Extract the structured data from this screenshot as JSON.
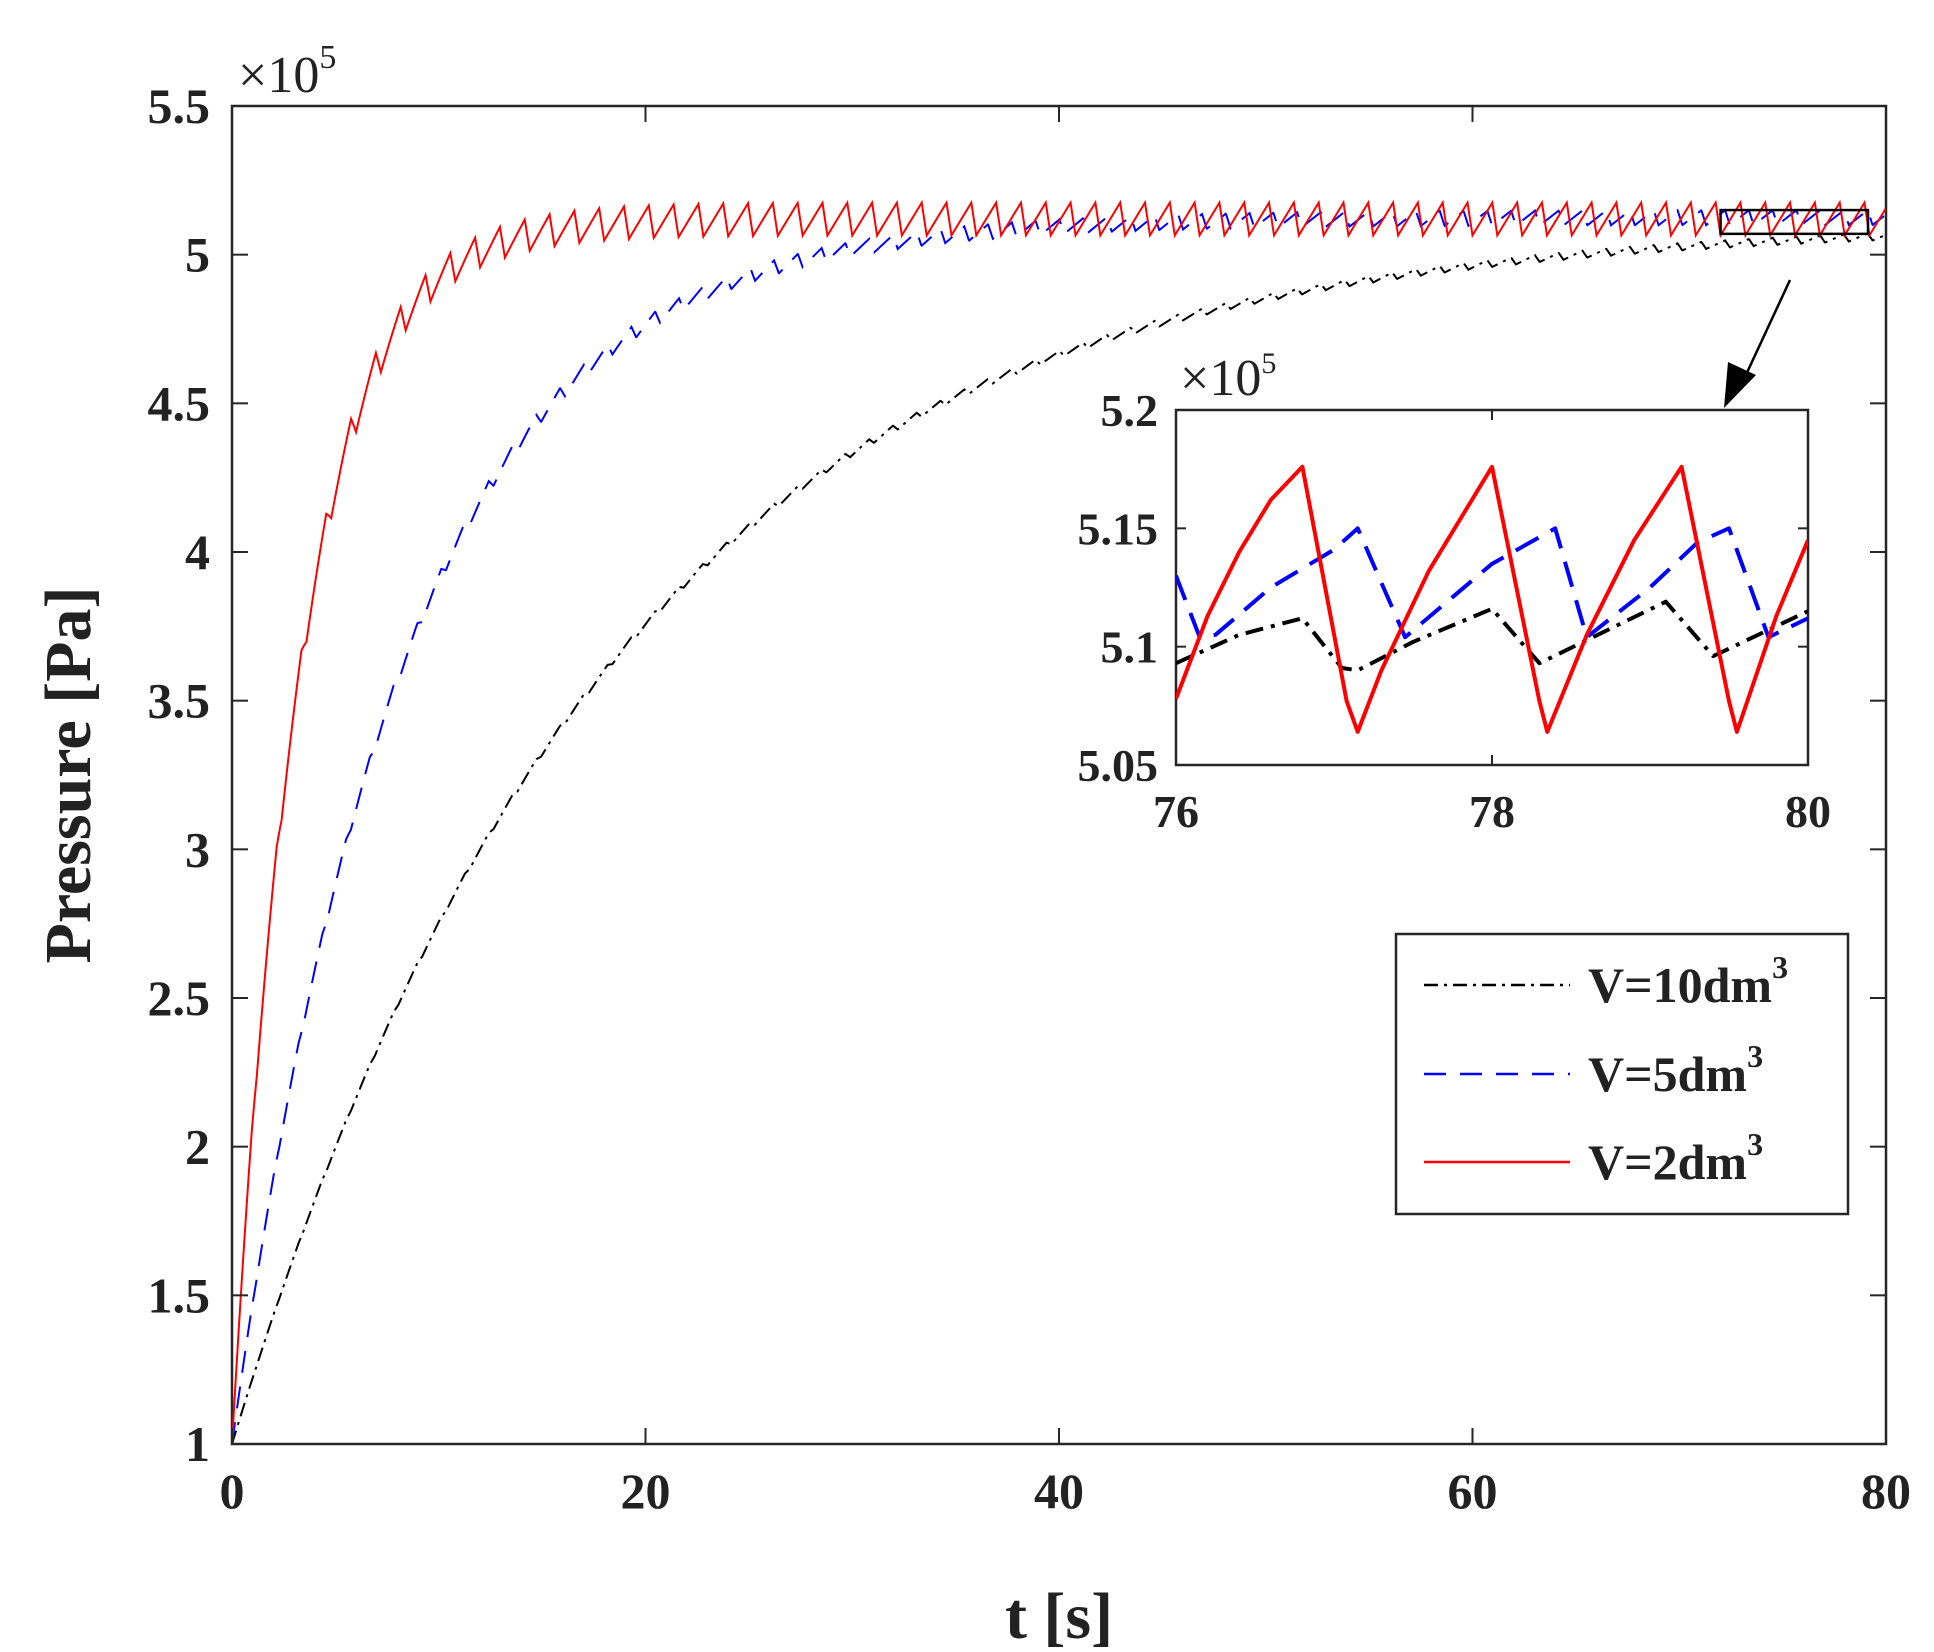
{
  "chart_data": {
    "main": {
      "type": "line",
      "xlabel": "t [s]",
      "ylabel": "Pressure [Pa]",
      "xlim": [
        0,
        80
      ],
      "ylim": [
        1,
        5.5
      ],
      "y_multiplier": {
        "times": "×",
        "base": "10",
        "exp": "5"
      },
      "xticks": [
        0,
        20,
        40,
        60,
        80
      ],
      "xtick_labels": [
        "0",
        "20",
        "40",
        "60",
        "80"
      ],
      "yticks": [
        1,
        1.5,
        2,
        2.5,
        3,
        3.5,
        4,
        4.5,
        5,
        5.5
      ],
      "ytick_labels": [
        "1",
        "1.5",
        "2",
        "2.5",
        "3",
        "3.5",
        "4",
        "4.5",
        "5",
        "5.5"
      ],
      "grid": false,
      "legend_position": "bottom-right",
      "series": [
        {
          "name": "V=10dm",
          "sup": "3",
          "color": "#000000",
          "style": "dashdot",
          "p0": 1.0,
          "pss": 5.11,
          "tau": 18.0,
          "period": 1.15,
          "ripple": 0.025
        },
        {
          "name": "V=5dm",
          "sup": "3",
          "color": "#0000ff",
          "style": "dash",
          "p0": 1.0,
          "pss": 5.125,
          "tau": 8.2,
          "period": 1.15,
          "ripple": 0.05
        },
        {
          "name": "V=2dm",
          "sup": "3",
          "color": "#ff0000",
          "style": "solid",
          "p0": 1.0,
          "pss": 5.12,
          "tau": 3.3,
          "period": 1.2,
          "ripple": 0.11
        }
      ]
    },
    "inset": {
      "type": "line",
      "xlim": [
        76,
        80
      ],
      "ylim": [
        5.05,
        5.2
      ],
      "y_multiplier": {
        "times": "×",
        "base": "10",
        "exp": "5"
      },
      "xticks": [
        76,
        78,
        80
      ],
      "xtick_labels": [
        "76",
        "78",
        "80"
      ],
      "yticks": [
        5.05,
        5.1,
        5.15,
        5.2
      ],
      "ytick_labels": [
        "5.05",
        "5.1",
        "5.15",
        "5.2"
      ],
      "zoom_box": {
        "x": [
          72,
          80
        ],
        "y": [
          5.07,
          5.15
        ]
      },
      "series": [
        {
          "name": "V=10dm3",
          "color": "#000000",
          "style": "dashdot",
          "points": [
            [
              76.0,
              5.093
            ],
            [
              76.4,
              5.105
            ],
            [
              76.8,
              5.112
            ],
            [
              77.05,
              5.091
            ],
            [
              77.15,
              5.09
            ],
            [
              77.5,
              5.102
            ],
            [
              78.0,
              5.116
            ],
            [
              78.3,
              5.093
            ],
            [
              78.7,
              5.106
            ],
            [
              79.1,
              5.119
            ],
            [
              79.4,
              5.096
            ],
            [
              80.0,
              5.115
            ]
          ]
        },
        {
          "name": "V=5dm3",
          "color": "#0000ff",
          "style": "dash",
          "points": [
            [
              76.0,
              5.13
            ],
            [
              76.15,
              5.104
            ],
            [
              76.25,
              5.105
            ],
            [
              76.6,
              5.125
            ],
            [
              77.0,
              5.141
            ],
            [
              77.15,
              5.15
            ],
            [
              77.45,
              5.104
            ],
            [
              78.0,
              5.135
            ],
            [
              78.4,
              5.15
            ],
            [
              78.6,
              5.104
            ],
            [
              79.0,
              5.125
            ],
            [
              79.3,
              5.144
            ],
            [
              79.5,
              5.15
            ],
            [
              79.75,
              5.104
            ],
            [
              80.0,
              5.112
            ]
          ]
        },
        {
          "name": "V=2dm3",
          "color": "#ff0000",
          "style": "solid",
          "points": [
            [
              76.0,
              5.078
            ],
            [
              76.2,
              5.113
            ],
            [
              76.4,
              5.14
            ],
            [
              76.6,
              5.162
            ],
            [
              76.8,
              5.176
            ],
            [
              77.08,
              5.077
            ],
            [
              77.15,
              5.064
            ],
            [
              77.3,
              5.09
            ],
            [
              77.6,
              5.132
            ],
            [
              78.0,
              5.176
            ],
            [
              78.3,
              5.077
            ],
            [
              78.35,
              5.064
            ],
            [
              78.6,
              5.105
            ],
            [
              78.9,
              5.145
            ],
            [
              79.2,
              5.176
            ],
            [
              79.5,
              5.077
            ],
            [
              79.55,
              5.064
            ],
            [
              79.8,
              5.113
            ],
            [
              80.0,
              5.145
            ]
          ]
        }
      ]
    }
  }
}
